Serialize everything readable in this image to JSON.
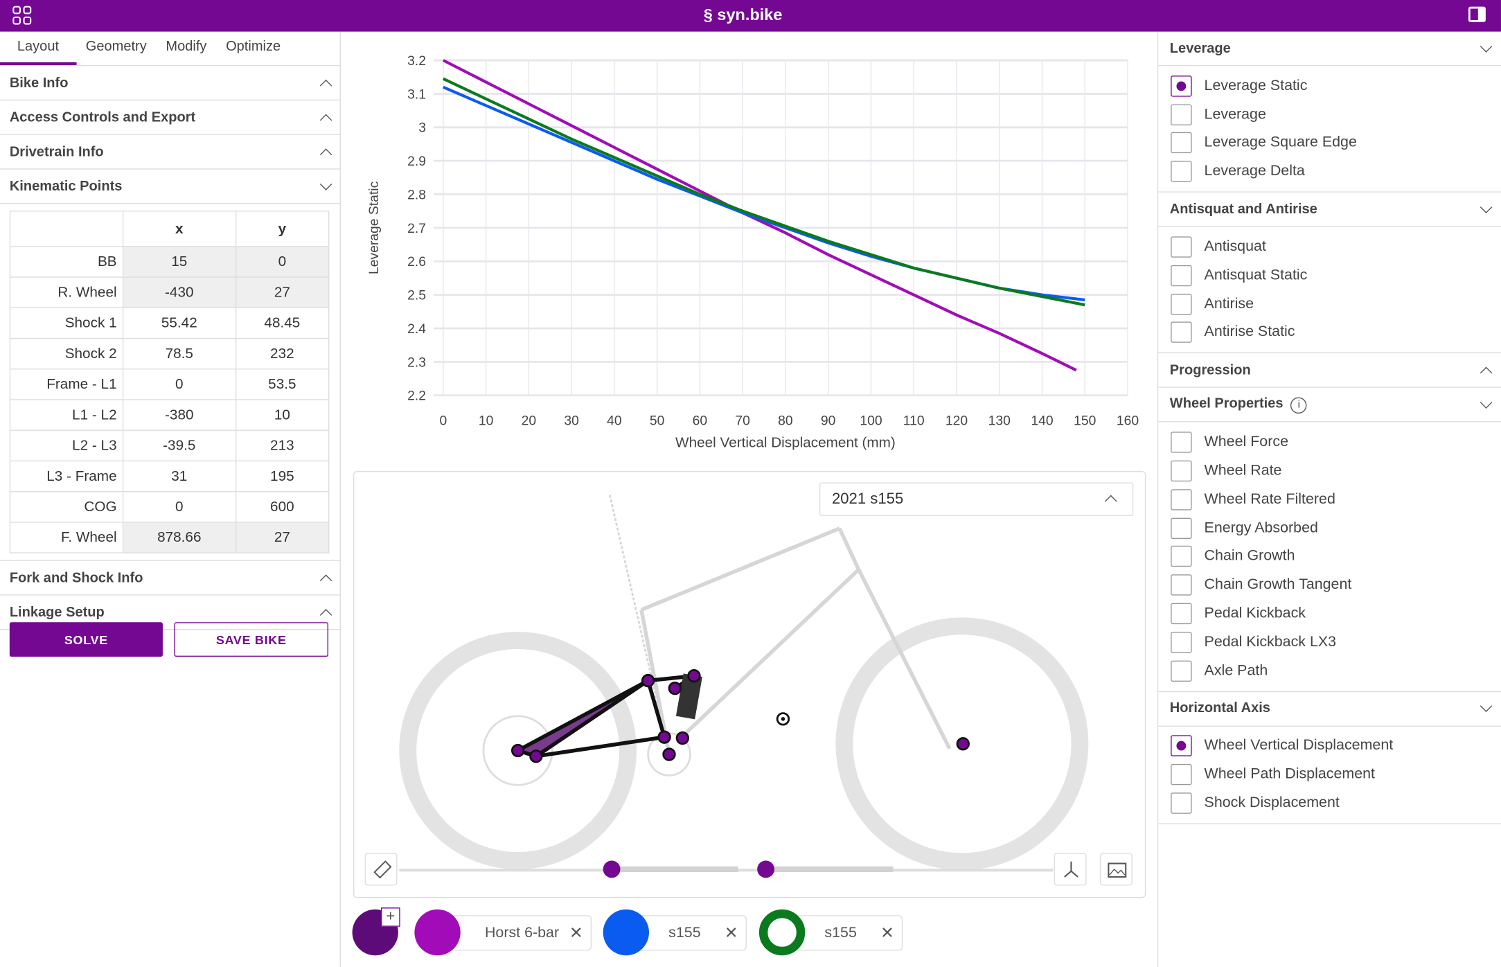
{
  "header": {
    "brand": "syn.bike",
    "menu_icon": "grid-icon",
    "panel_icon": "sidebar-toggle-icon"
  },
  "left": {
    "tabs": [
      "Layout",
      "Geometry",
      "Modify",
      "Optimize"
    ],
    "sections_top": [
      "Bike Info",
      "Access Controls and Export",
      "Drivetrain Info",
      "Kinematic Points"
    ],
    "table": {
      "headers": [
        "",
        "x",
        "y"
      ],
      "rows": [
        [
          "BB",
          "15",
          "0"
        ],
        [
          "R. Wheel",
          "-430",
          "27"
        ],
        [
          "Shock 1",
          "55.42",
          "48.45"
        ],
        [
          "Shock 2",
          "78.5",
          "232"
        ],
        [
          "Frame - L1",
          "0",
          "53.5"
        ],
        [
          "L1 - L2",
          "-380",
          "10"
        ],
        [
          "L2 - L3",
          "-39.5",
          "213"
        ],
        [
          "L3 - Frame",
          "31",
          "195"
        ],
        [
          "COG",
          "0",
          "600"
        ],
        [
          "F. Wheel",
          "878.66",
          "27"
        ]
      ]
    },
    "sections_bottom": [
      "Fork and Shock Info",
      "Linkage Setup"
    ],
    "solve": "SOLVE",
    "save": "SAVE BIKE"
  },
  "chart_data": {
    "type": "line",
    "xlabel": "Wheel Vertical Displacement (mm)",
    "ylabel": "Leverage Static",
    "xlim": [
      0,
      160
    ],
    "ylim": [
      2.2,
      3.2
    ],
    "xticks": [
      "0",
      "10",
      "20",
      "30",
      "40",
      "50",
      "60",
      "70",
      "80",
      "90",
      "100",
      "110",
      "120",
      "130",
      "140",
      "150",
      "160"
    ],
    "yticks": [
      "2.2",
      "2.3",
      "2.4",
      "2.5",
      "2.6",
      "2.7",
      "2.8",
      "2.9",
      "3",
      "3.1",
      "3.2"
    ],
    "series": [
      {
        "name": "Horst 6-bar",
        "color": "#a10cb8",
        "x": [
          0,
          10,
          20,
          30,
          40,
          50,
          60,
          70,
          80,
          90,
          100,
          110,
          120,
          130,
          140,
          148
        ],
        "y": [
          3.2,
          3.135,
          3.07,
          3.005,
          2.94,
          2.875,
          2.81,
          2.745,
          2.685,
          2.62,
          2.56,
          2.5,
          2.44,
          2.385,
          2.325,
          2.275
        ]
      },
      {
        "name": "s155",
        "color": "#0a5cf0",
        "x": [
          0,
          10,
          20,
          30,
          40,
          50,
          60,
          70,
          80,
          90,
          100,
          110,
          120,
          130,
          140,
          150
        ],
        "y": [
          3.12,
          3.065,
          3.01,
          2.955,
          2.9,
          2.845,
          2.795,
          2.745,
          2.7,
          2.655,
          2.615,
          2.58,
          2.55,
          2.52,
          2.5,
          2.485
        ]
      },
      {
        "name": "s155",
        "color": "#0b7a1e",
        "x": [
          0,
          10,
          20,
          30,
          40,
          50,
          60,
          70,
          80,
          90,
          100,
          110,
          120,
          130,
          140,
          150
        ],
        "y": [
          3.145,
          3.085,
          3.025,
          2.965,
          2.91,
          2.855,
          2.8,
          2.75,
          2.705,
          2.66,
          2.62,
          2.58,
          2.55,
          2.52,
          2.495,
          2.47
        ]
      }
    ]
  },
  "bike": {
    "selected_bike": "2021 s155"
  },
  "chips": [
    {
      "label": "Horst 6-bar",
      "color": "#a10cb8"
    },
    {
      "label": "s155",
      "color": "#0a5cf0"
    },
    {
      "label": "s155",
      "color": "#0b7a1e"
    }
  ],
  "right": {
    "leverage": {
      "title": "Leverage",
      "options": [
        "Leverage Static",
        "Leverage",
        "Leverage Square Edge",
        "Leverage Delta"
      ],
      "selected": 0
    },
    "antisquat": {
      "title": "Antisquat and Antirise",
      "options": [
        "Antisquat",
        "Antisquat Static",
        "Antirise",
        "Antirise Static"
      ]
    },
    "progression": {
      "title": "Progression"
    },
    "wheel": {
      "title": "Wheel Properties",
      "options": [
        "Wheel Force",
        "Wheel Rate",
        "Wheel Rate Filtered",
        "Energy Absorbed",
        "Chain Growth",
        "Chain Growth Tangent",
        "Pedal Kickback",
        "Pedal Kickback LX3",
        "Axle Path"
      ]
    },
    "haxis": {
      "title": "Horizontal Axis",
      "options": [
        "Wheel Vertical Displacement",
        "Wheel Path Displacement",
        "Shock Displacement"
      ],
      "selected": 0
    }
  }
}
